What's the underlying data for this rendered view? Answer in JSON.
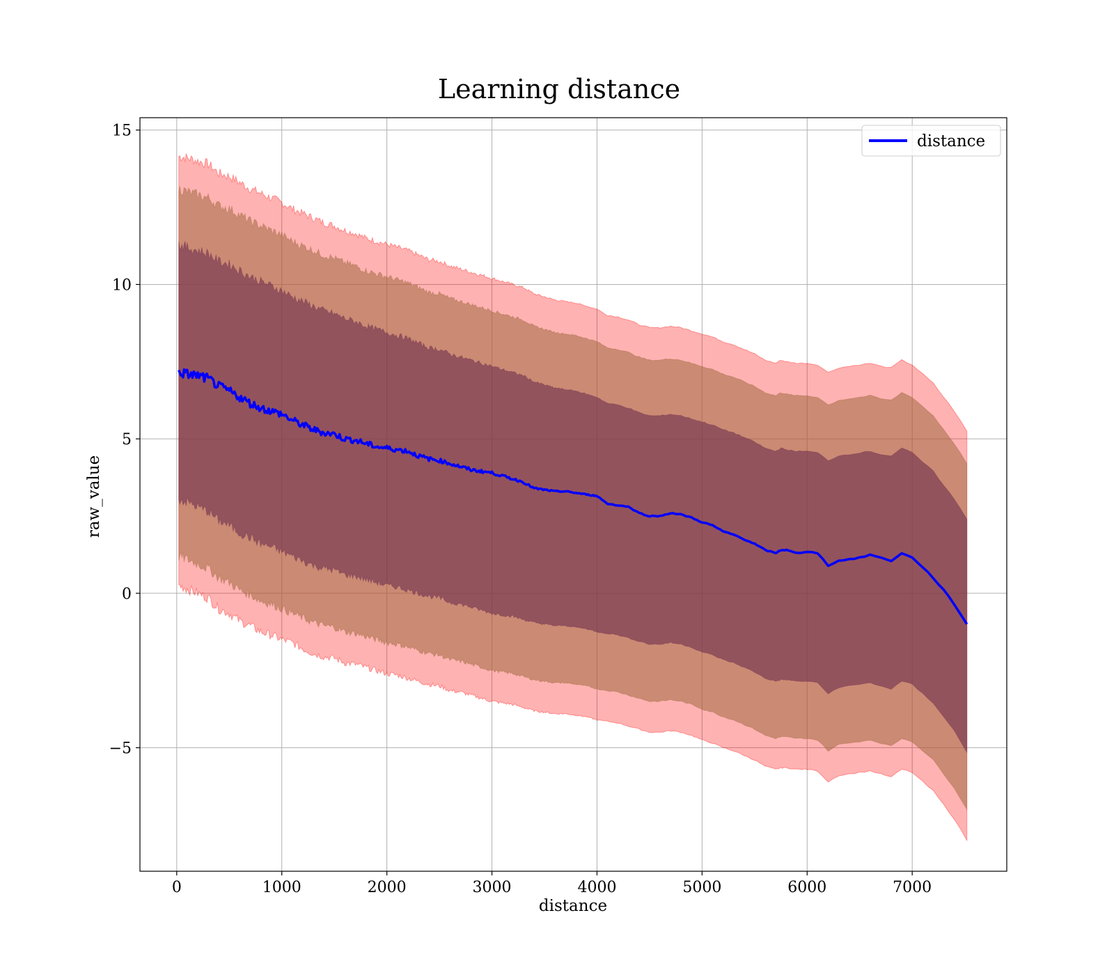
{
  "chart_data": {
    "type": "line",
    "title": "Learning distance",
    "xlabel": "distance",
    "ylabel": "raw_value",
    "xlim": [
      -350,
      7900
    ],
    "ylim": [
      -9.0,
      15.4
    ],
    "xticks": [
      0,
      1000,
      2000,
      3000,
      4000,
      5000,
      6000,
      7000
    ],
    "xtick_labels": [
      "0",
      "1000",
      "2000",
      "3000",
      "4000",
      "5000",
      "6000",
      "7000"
    ],
    "yticks": [
      -5,
      0,
      5,
      10,
      15
    ],
    "ytick_labels": [
      "−5",
      "0",
      "5",
      "10",
      "15"
    ],
    "grid": true,
    "legend": {
      "position": "top-right",
      "entries": [
        "distance"
      ]
    },
    "colors": {
      "line": "#0000ff",
      "band_outer": "#ff0000",
      "band_middle": "#a06a40",
      "band_inner": "#6e2f4e",
      "grid": "#b0b0b0"
    },
    "series": [
      {
        "name": "distance",
        "x": [
          20,
          100,
          200,
          300,
          400,
          500,
          600,
          700,
          800,
          900,
          1000,
          1100,
          1200,
          1300,
          1400,
          1500,
          1600,
          1700,
          1800,
          1900,
          2000,
          2100,
          2200,
          2300,
          2400,
          2500,
          2600,
          2700,
          2800,
          2900,
          3000,
          3100,
          3200,
          3300,
          3400,
          3500,
          3600,
          3700,
          3800,
          3900,
          4000,
          4100,
          4200,
          4300,
          4400,
          4500,
          4600,
          4700,
          4800,
          4900,
          5000,
          5100,
          5200,
          5300,
          5400,
          5500,
          5600,
          5700,
          5750,
          5800,
          5900,
          6000,
          6100,
          6200,
          6300,
          6400,
          6500,
          6600,
          6700,
          6800,
          6900,
          7000,
          7100,
          7200,
          7300,
          7400,
          7520
        ],
        "y": [
          7.15,
          7.1,
          7.05,
          6.95,
          6.7,
          6.55,
          6.35,
          6.15,
          6.0,
          5.9,
          5.8,
          5.6,
          5.45,
          5.3,
          5.2,
          5.15,
          5.0,
          4.95,
          4.85,
          4.75,
          4.7,
          4.65,
          4.6,
          4.45,
          4.35,
          4.3,
          4.2,
          4.1,
          4.0,
          3.95,
          3.9,
          3.8,
          3.7,
          3.6,
          3.4,
          3.35,
          3.3,
          3.3,
          3.25,
          3.2,
          3.15,
          2.9,
          2.85,
          2.8,
          2.6,
          2.5,
          2.5,
          2.6,
          2.55,
          2.45,
          2.3,
          2.2,
          2.0,
          1.9,
          1.75,
          1.6,
          1.4,
          1.3,
          1.4,
          1.4,
          1.3,
          1.35,
          1.3,
          0.9,
          1.05,
          1.1,
          1.15,
          1.25,
          1.15,
          1.05,
          1.3,
          1.15,
          0.85,
          0.5,
          0.1,
          -0.35,
          -1.0
        ]
      }
    ],
    "bands": [
      {
        "level": "outer",
        "lower": [
          0.25,
          0.15,
          0.0,
          -0.15,
          -0.5,
          -0.65,
          -0.9,
          -1.05,
          -1.25,
          -1.35,
          -1.5,
          -1.6,
          -1.8,
          -1.95,
          -2.05,
          -2.1,
          -2.25,
          -2.3,
          -2.4,
          -2.5,
          -2.6,
          -2.65,
          -2.75,
          -2.85,
          -2.95,
          -3.0,
          -3.15,
          -3.2,
          -3.3,
          -3.4,
          -3.5,
          -3.55,
          -3.6,
          -3.7,
          -3.8,
          -3.85,
          -3.9,
          -3.9,
          -3.95,
          -4.0,
          -4.1,
          -4.15,
          -4.2,
          -4.3,
          -4.4,
          -4.5,
          -4.5,
          -4.45,
          -4.5,
          -4.6,
          -4.75,
          -4.85,
          -5.0,
          -5.1,
          -5.25,
          -5.4,
          -5.6,
          -5.7,
          -5.65,
          -5.65,
          -5.7,
          -5.7,
          -5.75,
          -6.1,
          -5.9,
          -5.85,
          -5.8,
          -5.75,
          -5.85,
          -5.95,
          -5.7,
          -5.8,
          -6.1,
          -6.4,
          -6.85,
          -7.3,
          -8.0
        ],
        "upper": [
          14.15,
          14.1,
          14.0,
          13.9,
          13.6,
          13.5,
          13.3,
          13.1,
          12.95,
          12.8,
          12.65,
          12.45,
          12.3,
          12.15,
          12.0,
          11.9,
          11.75,
          11.65,
          11.5,
          11.4,
          11.3,
          11.2,
          11.1,
          10.95,
          10.8,
          10.75,
          10.6,
          10.5,
          10.4,
          10.3,
          10.2,
          10.1,
          10.0,
          9.9,
          9.7,
          9.6,
          9.5,
          9.45,
          9.4,
          9.3,
          9.2,
          9.0,
          8.95,
          8.85,
          8.7,
          8.6,
          8.6,
          8.65,
          8.6,
          8.5,
          8.4,
          8.3,
          8.15,
          8.05,
          7.9,
          7.75,
          7.55,
          7.45,
          7.55,
          7.5,
          7.45,
          7.45,
          7.4,
          7.15,
          7.3,
          7.35,
          7.4,
          7.45,
          7.35,
          7.3,
          7.55,
          7.4,
          7.1,
          6.8,
          6.35,
          5.9,
          5.25
        ]
      },
      {
        "level": "middle",
        "lower": [
          1.2,
          1.1,
          0.95,
          0.8,
          0.5,
          0.35,
          0.1,
          -0.05,
          -0.25,
          -0.35,
          -0.5,
          -0.65,
          -0.8,
          -0.95,
          -1.05,
          -1.1,
          -1.25,
          -1.3,
          -1.4,
          -1.5,
          -1.6,
          -1.65,
          -1.75,
          -1.85,
          -1.95,
          -2.0,
          -2.15,
          -2.2,
          -2.3,
          -2.4,
          -2.5,
          -2.55,
          -2.6,
          -2.7,
          -2.8,
          -2.85,
          -2.9,
          -2.9,
          -2.95,
          -3.0,
          -3.1,
          -3.15,
          -3.2,
          -3.3,
          -3.4,
          -3.5,
          -3.5,
          -3.45,
          -3.5,
          -3.6,
          -3.75,
          -3.85,
          -4.0,
          -4.1,
          -4.25,
          -4.4,
          -4.6,
          -4.7,
          -4.65,
          -4.65,
          -4.7,
          -4.7,
          -4.75,
          -5.1,
          -4.9,
          -4.85,
          -4.8,
          -4.75,
          -4.85,
          -4.95,
          -4.7,
          -4.8,
          -5.1,
          -5.4,
          -5.85,
          -6.3,
          -7.0
        ],
        "upper": [
          13.1,
          13.0,
          12.9,
          12.8,
          12.55,
          12.45,
          12.25,
          12.05,
          11.9,
          11.75,
          11.6,
          11.4,
          11.25,
          11.1,
          10.95,
          10.85,
          10.7,
          10.6,
          10.45,
          10.35,
          10.25,
          10.15,
          10.05,
          9.9,
          9.75,
          9.7,
          9.55,
          9.45,
          9.35,
          9.25,
          9.15,
          9.05,
          8.95,
          8.85,
          8.65,
          8.55,
          8.45,
          8.4,
          8.35,
          8.25,
          8.15,
          7.95,
          7.9,
          7.8,
          7.65,
          7.55,
          7.55,
          7.6,
          7.55,
          7.45,
          7.35,
          7.25,
          7.1,
          7.0,
          6.85,
          6.7,
          6.5,
          6.4,
          6.5,
          6.45,
          6.4,
          6.4,
          6.35,
          6.1,
          6.25,
          6.3,
          6.35,
          6.4,
          6.3,
          6.25,
          6.5,
          6.35,
          6.05,
          5.75,
          5.3,
          4.85,
          4.2
        ]
      },
      {
        "level": "inner",
        "lower": [
          3.05,
          2.95,
          2.8,
          2.65,
          2.35,
          2.2,
          1.95,
          1.8,
          1.6,
          1.5,
          1.35,
          1.2,
          1.05,
          0.9,
          0.8,
          0.75,
          0.6,
          0.55,
          0.45,
          0.35,
          0.25,
          0.2,
          0.1,
          0.0,
          -0.1,
          -0.15,
          -0.3,
          -0.35,
          -0.45,
          -0.55,
          -0.65,
          -0.7,
          -0.75,
          -0.85,
          -0.95,
          -1.0,
          -1.05,
          -1.05,
          -1.1,
          -1.15,
          -1.25,
          -1.3,
          -1.35,
          -1.45,
          -1.55,
          -1.65,
          -1.65,
          -1.6,
          -1.65,
          -1.75,
          -1.9,
          -2.0,
          -2.15,
          -2.25,
          -2.4,
          -2.55,
          -2.75,
          -2.85,
          -2.8,
          -2.8,
          -2.85,
          -2.85,
          -2.9,
          -3.25,
          -3.05,
          -3.0,
          -2.95,
          -2.9,
          -3.0,
          -3.1,
          -2.85,
          -2.95,
          -3.25,
          -3.55,
          -4.0,
          -4.45,
          -5.15
        ],
        "upper": [
          11.3,
          11.2,
          11.1,
          11.0,
          10.75,
          10.65,
          10.45,
          10.25,
          10.1,
          9.95,
          9.8,
          9.6,
          9.45,
          9.3,
          9.15,
          9.05,
          8.9,
          8.8,
          8.65,
          8.55,
          8.45,
          8.35,
          8.25,
          8.1,
          7.95,
          7.9,
          7.75,
          7.65,
          7.55,
          7.45,
          7.35,
          7.25,
          7.15,
          7.05,
          6.85,
          6.75,
          6.65,
          6.6,
          6.55,
          6.45,
          6.35,
          6.15,
          6.1,
          6.0,
          5.85,
          5.75,
          5.75,
          5.8,
          5.75,
          5.65,
          5.55,
          5.45,
          5.3,
          5.2,
          5.05,
          4.9,
          4.7,
          4.6,
          4.7,
          4.65,
          4.6,
          4.6,
          4.55,
          4.3,
          4.45,
          4.5,
          4.55,
          4.6,
          4.5,
          4.45,
          4.7,
          4.55,
          4.25,
          3.95,
          3.5,
          3.05,
          2.4
        ]
      }
    ]
  }
}
